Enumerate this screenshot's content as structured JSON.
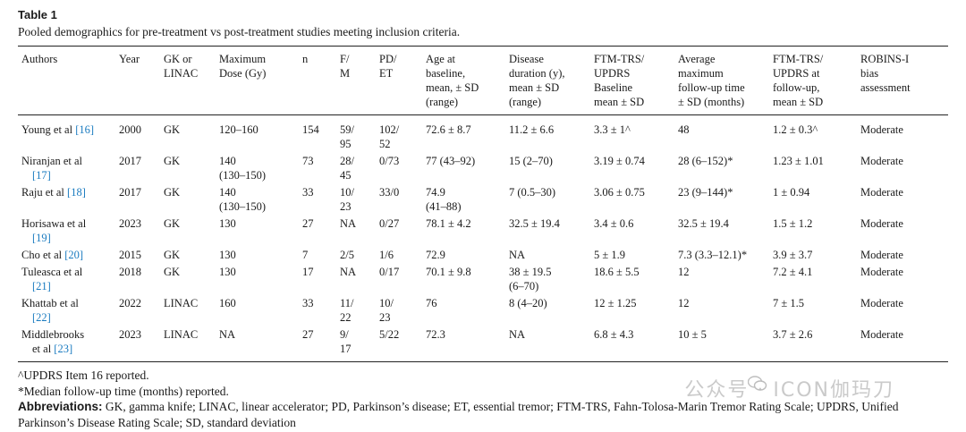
{
  "table_label": "Table 1",
  "caption": "Pooled demographics for pre-treatment vs post-treatment studies meeting inclusion criteria.",
  "headers": [
    [
      "Authors"
    ],
    [
      "Year"
    ],
    [
      "GK or",
      "LINAC"
    ],
    [
      "Maximum",
      "Dose (Gy)"
    ],
    [
      "n"
    ],
    [
      "F/",
      "M"
    ],
    [
      "PD/",
      "ET"
    ],
    [
      "Age at",
      "baseline,",
      "mean, ± SD",
      "(range)"
    ],
    [
      "Disease",
      "duration (y),",
      "mean ± SD",
      "(range)"
    ],
    [
      "FTM-TRS/",
      "UPDRS",
      "Baseline",
      "mean ± SD"
    ],
    [
      "Average",
      "maximum",
      "follow-up time",
      "± SD (months)"
    ],
    [
      "FTM-TRS/",
      "UPDRS at",
      "follow-up,",
      "mean ± SD"
    ],
    [
      "ROBINS-I",
      "bias",
      "assessment"
    ]
  ],
  "rows": [
    {
      "author": "Young et al",
      "ref": "[16]",
      "cells": [
        [
          "2000"
        ],
        [
          "GK"
        ],
        [
          "120–160"
        ],
        [
          "154"
        ],
        [
          "59/",
          "95"
        ],
        [
          "102/",
          "52"
        ],
        [
          "72.6 ± 8.7"
        ],
        [
          "11.2 ± 6.6"
        ],
        [
          "3.3 ± 1^"
        ],
        [
          "48"
        ],
        [
          "1.2 ± 0.3^"
        ],
        [
          "Moderate"
        ]
      ]
    },
    {
      "author": "Niranjan et al",
      "ref": "[17]",
      "cells": [
        [
          "2017"
        ],
        [
          "GK"
        ],
        [
          "140",
          "(130–150)"
        ],
        [
          "73"
        ],
        [
          "28/",
          "45"
        ],
        [
          "0/73"
        ],
        [
          "77 (43–92)"
        ],
        [
          "15 (2–70)"
        ],
        [
          "3.19 ± 0.74"
        ],
        [
          "28 (6–152)*"
        ],
        [
          "1.23 ± 1.01"
        ],
        [
          "Moderate"
        ]
      ]
    },
    {
      "author": "Raju et al",
      "ref": "[18]",
      "cells": [
        [
          "2017"
        ],
        [
          "GK"
        ],
        [
          "140",
          "(130–150)"
        ],
        [
          "33"
        ],
        [
          "10/",
          "23"
        ],
        [
          "33/0"
        ],
        [
          "74.9",
          "(41–88)"
        ],
        [
          "7 (0.5–30)"
        ],
        [
          "3.06 ± 0.75"
        ],
        [
          "23 (9–144)*"
        ],
        [
          "1 ± 0.94"
        ],
        [
          "Moderate"
        ]
      ]
    },
    {
      "author": "Horisawa et al",
      "ref": "[19]",
      "cells": [
        [
          "2023"
        ],
        [
          "GK"
        ],
        [
          "130"
        ],
        [
          "27"
        ],
        [
          "NA"
        ],
        [
          "0/27"
        ],
        [
          "78.1 ± 4.2"
        ],
        [
          "32.5 ± 19.4"
        ],
        [
          "3.4 ± 0.6"
        ],
        [
          "32.5 ± 19.4"
        ],
        [
          "1.5 ± 1.2"
        ],
        [
          "Moderate"
        ]
      ]
    },
    {
      "author": "Cho et al",
      "ref": "[20]",
      "cells": [
        [
          "2015"
        ],
        [
          "GK"
        ],
        [
          "130"
        ],
        [
          "7"
        ],
        [
          "2/5"
        ],
        [
          "1/6"
        ],
        [
          "72.9"
        ],
        [
          "NA"
        ],
        [
          "5 ± 1.9"
        ],
        [
          "7.3 (3.3–12.1)*"
        ],
        [
          "3.9 ± 3.7"
        ],
        [
          "Moderate"
        ]
      ]
    },
    {
      "author": "Tuleasca et al",
      "ref": "[21]",
      "cells": [
        [
          "2018"
        ],
        [
          "GK"
        ],
        [
          "130"
        ],
        [
          "17"
        ],
        [
          "NA"
        ],
        [
          "0/17"
        ],
        [
          "70.1 ± 9.8"
        ],
        [
          "38 ± 19.5",
          "(6–70)"
        ],
        [
          "18.6 ± 5.5"
        ],
        [
          "12"
        ],
        [
          "7.2 ± 4.1"
        ],
        [
          "Moderate"
        ]
      ]
    },
    {
      "author": "Khattab et al",
      "ref": "[22]",
      "cells": [
        [
          "2022"
        ],
        [
          "LINAC"
        ],
        [
          "160"
        ],
        [
          "33"
        ],
        [
          "11/",
          "22"
        ],
        [
          "10/",
          "23"
        ],
        [
          "76"
        ],
        [
          "8 (4–20)"
        ],
        [
          "12 ± 1.25"
        ],
        [
          "12"
        ],
        [
          "7 ± 1.5"
        ],
        [
          "Moderate"
        ]
      ]
    },
    {
      "author": "Middlebrooks",
      "author2": "et al",
      "ref": "[23]",
      "cells": [
        [
          "2023"
        ],
        [
          "LINAC"
        ],
        [
          "NA"
        ],
        [
          "27"
        ],
        [
          "9/",
          "17"
        ],
        [
          "5/22"
        ],
        [
          "72.3"
        ],
        [
          "NA"
        ],
        [
          "6.8 ± 4.3"
        ],
        [
          "10 ± 5"
        ],
        [
          "3.7 ± 2.6"
        ],
        [
          "Moderate"
        ]
      ]
    }
  ],
  "footnotes": {
    "caret": "^UPDRS Item 16 reported.",
    "asterisk": "*Median follow-up time (months) reported.",
    "abbr_label": "Abbreviations:",
    "abbr_text": " GK, gamma knife; LINAC, linear accelerator; PD, Parkinson’s disease; ET, essential tremor; FTM-TRS, Fahn-Tolosa-Marin Tremor Rating Scale; UPDRS, Unified Parkinson’s Disease Rating Scale; SD, standard deviation"
  },
  "watermark": "公众号 · ICON伽玛刀",
  "colors": {
    "ref_link": "#1a7bc0",
    "text": "#1a1a1a",
    "watermark": "#b9b9b9"
  }
}
